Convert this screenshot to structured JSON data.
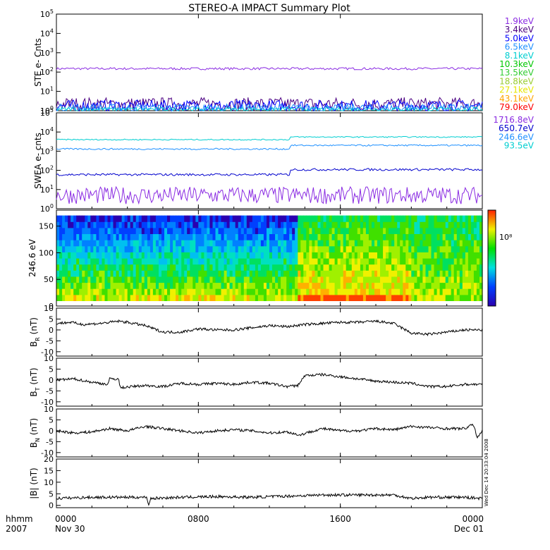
{
  "title": "STEREO-A IMPACT Summary Plot",
  "time_axis": {
    "row1_label": "hhmm",
    "row2_label": "2007",
    "ticks": [
      {
        "hhmm": "0000",
        "date": "Nov 30",
        "hour": 0
      },
      {
        "hhmm": "0800",
        "date": "",
        "hour": 8
      },
      {
        "hhmm": "1600",
        "date": "",
        "hour": 16
      },
      {
        "hhmm": "0000",
        "date": "Dec 01",
        "hour": 24
      }
    ]
  },
  "side_stamp": "Wed Dec 14 20:33:04 2008",
  "chart_data": [
    {
      "id": "ste",
      "type": "line",
      "ylabel": "STE e- Cnts",
      "yscale": "log",
      "ylim": [
        1,
        100000
      ],
      "ytick_exponents": [
        0,
        1,
        2,
        3,
        4,
        5
      ],
      "legend_placement": "right",
      "series": [
        {
          "name": "1.9keV",
          "color": "#8a2be2",
          "level": 150,
          "noise": 0.06
        },
        {
          "name": "3.4keV",
          "color": "#4b0082",
          "level": 2.2,
          "noise": 0.35
        },
        {
          "name": "5.0keV",
          "color": "#0000ff",
          "level": 1.8,
          "noise": 0.3
        },
        {
          "name": "6.5keV",
          "color": "#1e90ff",
          "level": 1.4,
          "noise": 0.2
        },
        {
          "name": "8.1keV",
          "color": "#00ced1",
          "level": 1.2,
          "noise": 0.1
        },
        {
          "name": "10.3keV",
          "color": "#00c800",
          "level": null,
          "noise": 0
        },
        {
          "name": "13.5keV",
          "color": "#32cd32",
          "level": null,
          "noise": 0
        },
        {
          "name": "18.8keV",
          "color": "#9acd32",
          "level": null,
          "noise": 0
        },
        {
          "name": "27.1keV",
          "color": "#e6e600",
          "level": null,
          "noise": 0
        },
        {
          "name": "43.1keV",
          "color": "#ffa500",
          "level": null,
          "noise": 0
        },
        {
          "name": "79.0keV",
          "color": "#ff0000",
          "level": null,
          "noise": 0
        }
      ]
    },
    {
      "id": "swea",
      "type": "line",
      "ylabel": "SWEA e- cnts",
      "yscale": "log",
      "ylim": [
        1,
        100000
      ],
      "ytick_exponents": [
        0,
        1,
        2,
        3,
        4,
        5
      ],
      "legend_placement": "right",
      "series": [
        {
          "name": "1716.8eV",
          "color": "#8a2be2",
          "level": 5,
          "noise": 0.45
        },
        {
          "name": "650.7eV",
          "color": "#0000cd",
          "level": 60,
          "step_to": 110,
          "step_hour": 13.2,
          "noise": 0.06
        },
        {
          "name": "246.6eV",
          "color": "#1e90ff",
          "level": 1300,
          "step_to": 2000,
          "step_hour": 13.2,
          "noise": 0.04
        },
        {
          "name": "93.5eV",
          "color": "#00ced1",
          "level": 4000,
          "step_to": 5500,
          "step_hour": 13.2,
          "noise": 0.03
        }
      ]
    },
    {
      "id": "pad",
      "type": "heatmap",
      "ylabel": "246.6 eV",
      "ylim": [
        0,
        180
      ],
      "ytick_values": [
        0,
        50,
        100,
        150
      ],
      "colorbar_label": "10⁸"
    },
    {
      "id": "br",
      "type": "line",
      "ylabel": "B",
      "ylabel_sub": "R",
      "ylabel_unit": "(nT)",
      "ylim": [
        -12,
        10
      ],
      "ytick_values": [
        -10,
        -5,
        0,
        5,
        10
      ],
      "color": "#000000",
      "points": [
        [
          0,
          3
        ],
        [
          0.8,
          3.5
        ],
        [
          1.5,
          2.5
        ],
        [
          2.5,
          3
        ],
        [
          3.5,
          4
        ],
        [
          4,
          3.5
        ],
        [
          5,
          2
        ],
        [
          6,
          -1
        ],
        [
          7,
          -1
        ],
        [
          8,
          0.5
        ],
        [
          9,
          0
        ],
        [
          10,
          0
        ],
        [
          11,
          1
        ],
        [
          12,
          2
        ],
        [
          13,
          1.5
        ],
        [
          14,
          2.5
        ],
        [
          15,
          3
        ],
        [
          16,
          3.5
        ],
        [
          17,
          3.5
        ],
        [
          18,
          4
        ],
        [
          19,
          3
        ],
        [
          20,
          -1.5
        ],
        [
          21,
          -2
        ],
        [
          22,
          -1
        ],
        [
          23,
          0
        ],
        [
          24,
          0
        ]
      ]
    },
    {
      "id": "bt",
      "type": "line",
      "ylabel": "B",
      "ylabel_sub": "T",
      "ylabel_unit": "(nT)",
      "ylim": [
        -12,
        10
      ],
      "ytick_values": [
        -10,
        -5,
        0,
        5,
        10
      ],
      "color": "#000000",
      "points": [
        [
          0,
          0
        ],
        [
          1,
          0.5
        ],
        [
          2,
          -1
        ],
        [
          2.9,
          -2
        ],
        [
          3.0,
          0.5
        ],
        [
          3.5,
          0.5
        ],
        [
          3.6,
          -3.5
        ],
        [
          5,
          -2.5
        ],
        [
          6,
          -3
        ],
        [
          7,
          -1.5
        ],
        [
          8,
          -2
        ],
        [
          9,
          -1.5
        ],
        [
          10,
          -2
        ],
        [
          11,
          -1
        ],
        [
          12,
          -1.5
        ],
        [
          13,
          -3
        ],
        [
          13.6,
          -2.5
        ],
        [
          14,
          2
        ],
        [
          15,
          2.5
        ],
        [
          16,
          1.5
        ],
        [
          17,
          0.5
        ],
        [
          18,
          -0.5
        ],
        [
          19,
          -1
        ],
        [
          20,
          -1.5
        ],
        [
          21,
          -3
        ],
        [
          22,
          -3
        ],
        [
          23,
          -2
        ],
        [
          24,
          -2
        ]
      ]
    },
    {
      "id": "bn",
      "type": "line",
      "ylabel": "B",
      "ylabel_sub": "N",
      "ylabel_unit": "(nT)",
      "ylim": [
        -12,
        10
      ],
      "ytick_values": [
        -10,
        -5,
        0,
        5,
        10
      ],
      "color": "#000000",
      "points": [
        [
          0,
          0
        ],
        [
          1,
          -1
        ],
        [
          2,
          -0.5
        ],
        [
          3,
          1
        ],
        [
          4,
          0
        ],
        [
          5,
          2
        ],
        [
          6,
          1
        ],
        [
          7,
          0
        ],
        [
          8,
          -1
        ],
        [
          9,
          0
        ],
        [
          10,
          0.5
        ],
        [
          11,
          0
        ],
        [
          12,
          -1
        ],
        [
          13,
          -0.5
        ],
        [
          13.7,
          -2
        ],
        [
          14.5,
          0
        ],
        [
          15,
          1
        ],
        [
          16,
          0
        ],
        [
          17,
          0
        ],
        [
          18,
          1
        ],
        [
          19,
          0.5
        ],
        [
          20,
          2
        ],
        [
          21,
          1.5
        ],
        [
          22,
          1
        ],
        [
          23,
          1
        ],
        [
          23.5,
          3
        ],
        [
          23.7,
          -3
        ],
        [
          24,
          0
        ]
      ]
    },
    {
      "id": "bmag",
      "type": "line",
      "ylabel": "|B|",
      "ylabel_unit": "(nT)",
      "ylim": [
        -1,
        20
      ],
      "ytick_values": [
        0,
        5,
        10,
        15,
        20
      ],
      "color": "#000000",
      "points": [
        [
          0,
          3
        ],
        [
          2,
          3.5
        ],
        [
          4,
          3.5
        ],
        [
          5.1,
          3.5
        ],
        [
          5.2,
          0
        ],
        [
          5.3,
          3
        ],
        [
          7,
          3.5
        ],
        [
          9,
          3.8
        ],
        [
          11,
          3.5
        ],
        [
          13,
          4
        ],
        [
          15,
          4.5
        ],
        [
          17,
          4.5
        ],
        [
          19,
          4.5
        ],
        [
          20,
          3
        ],
        [
          21,
          3.5
        ],
        [
          23,
          3.5
        ],
        [
          24,
          3
        ]
      ]
    }
  ]
}
